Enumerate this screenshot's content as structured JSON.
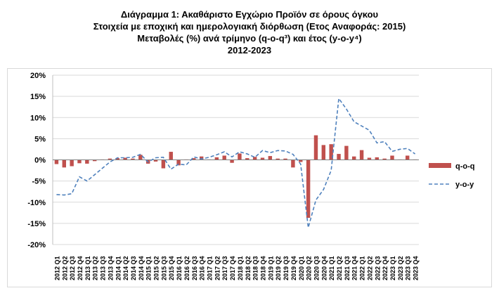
{
  "chart_data": {
    "type": "bar",
    "title_lines": [
      "Διάγραμμα 1: Ακαθάριστο Εγχώριο Προϊόν σε όρους όγκου",
      "Στοιχεία με εποχική και ημερολογιακή διόρθωση (Ετος Αναφοράς: 2015)",
      "Μεταβολές (%) ανά τρίμηνο (q-o-q³) και έτος (y-o-y⁴)",
      "2012-2023"
    ],
    "ylim": [
      -20,
      20
    ],
    "yticks": [
      "20%",
      "15%",
      "10%",
      "5%",
      "0%",
      "-5%",
      "-10%",
      "-15%",
      "-20%"
    ],
    "categories": [
      "2012 Q1",
      "2012 Q2",
      "2012 Q3",
      "2012 Q4",
      "2013 Q1",
      "2013 Q2",
      "2013 Q3",
      "2013 Q4",
      "2014 Q1",
      "2014 Q2",
      "2014 Q3",
      "2014 Q4",
      "2015 Q1",
      "2015 Q2",
      "2015 Q3",
      "2015 Q4",
      "2016 Q1",
      "2016 Q2",
      "2016 Q3",
      "2016 Q4",
      "2017 Q1",
      "2017 Q2",
      "2017 Q3",
      "2017 Q4",
      "2018 Q1",
      "2018 Q2",
      "2018 Q3",
      "2018 Q4",
      "2019 Q1",
      "2019 Q2",
      "2019 Q3",
      "2019 Q4",
      "2020 Q1",
      "2020 Q2",
      "2020 Q3",
      "2020 Q4",
      "2021 Q1",
      "2021 Q2",
      "2021 Q3",
      "2021 Q4",
      "2022 Q1",
      "2022 Q2",
      "2022 Q3",
      "2022 Q4",
      "2023 Q1",
      "2023 Q2",
      "2023 Q3",
      "2023 Q4"
    ],
    "series": [
      {
        "name": "q-o-q",
        "kind": "bar",
        "color": "#c0504d",
        "values": [
          -1.0,
          -1.8,
          -1.5,
          -0.8,
          -0.9,
          -0.3,
          0.1,
          0.3,
          0.4,
          0.5,
          0.3,
          1.2,
          -0.9,
          -0.4,
          -2.0,
          1.9,
          -1.3,
          0.1,
          0.4,
          0.8,
          0.1,
          0.6,
          1.0,
          -0.7,
          1.5,
          0.4,
          0.7,
          0.5,
          0.9,
          0.3,
          0.3,
          -1.8,
          -0.5,
          -13.7,
          5.8,
          3.5,
          3.7,
          1.4,
          3.3,
          0.8,
          2.3,
          0.5,
          0.6,
          0.3,
          1.0,
          0.1,
          1.0,
          0.1
        ]
      },
      {
        "name": "y-o-y",
        "kind": "line",
        "color": "#4f81bd",
        "values": [
          -8.2,
          -8.3,
          -8.0,
          -4.0,
          -5.0,
          -3.5,
          -2.0,
          -0.5,
          0.5,
          0.5,
          0.6,
          1.3,
          -0.5,
          0.5,
          0.6,
          -2.2,
          -1.0,
          -1.2,
          0.7,
          0.2,
          0.6,
          1.2,
          1.9,
          0.7,
          1.9,
          1.4,
          0.6,
          2.2,
          1.7,
          2.2,
          2.1,
          1.3,
          -1.0,
          -16.0,
          -9.5,
          -7.0,
          -2.5,
          14.5,
          12.0,
          9.0,
          8.0,
          7.0,
          4.0,
          4.3,
          2.0,
          2.5,
          2.7,
          1.4
        ]
      }
    ],
    "legend": {
      "position": "right",
      "entries": [
        "q-o-q",
        "y-o-y"
      ]
    },
    "grid": {
      "horizontal": true,
      "vertical": false
    },
    "colors": {
      "bar": "#c0504d",
      "line": "#4f81bd",
      "grid": "#d9d9d9"
    }
  }
}
